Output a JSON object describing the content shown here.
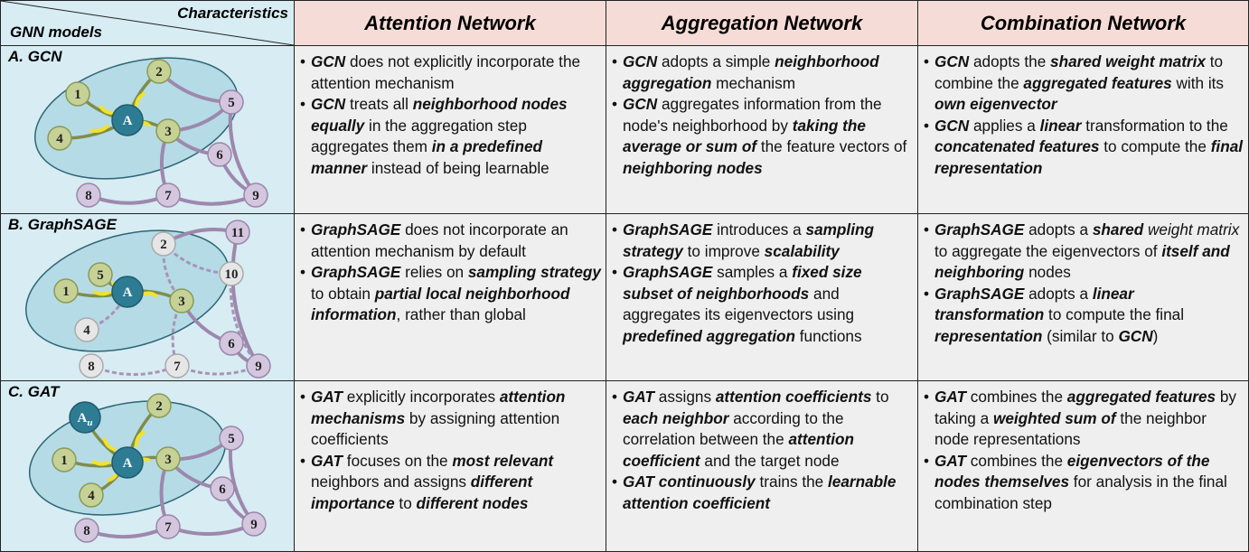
{
  "header": {
    "corner_top": "Characteristics",
    "corner_bottom": "GNN models",
    "columns": [
      "Attention Network",
      "Aggregation Network",
      "Combination Network"
    ]
  },
  "rows": [
    {
      "model": "A. GCN",
      "nodes": [
        {
          "label": "1"
        },
        {
          "label": "2"
        },
        {
          "label": "A"
        },
        {
          "label": "3"
        },
        {
          "label": "4"
        },
        {
          "label": "5"
        },
        {
          "label": "6"
        },
        {
          "label": "7"
        },
        {
          "label": "8"
        },
        {
          "label": "9"
        }
      ],
      "cells": [
        [
          [
            {
              "text": "GCN",
              "style": "bold-italic"
            },
            {
              "text": " does not explicitly incorporate the attention mechanism"
            }
          ],
          [
            {
              "text": "GCN",
              "style": "bold-italic"
            },
            {
              "text": " treats all "
            },
            {
              "text": "neighborhood nodes equally",
              "style": "bold-italic"
            },
            {
              "text": " in the aggregation step aggregates them "
            },
            {
              "text": "in a predefined manner",
              "style": "bold-italic"
            },
            {
              "text": " instead of being learnable"
            }
          ]
        ],
        [
          [
            {
              "text": "GCN",
              "style": "bold-italic"
            },
            {
              "text": " adopts a simple "
            },
            {
              "text": "neighborhood aggregation",
              "style": "bold-italic"
            },
            {
              "text": " mechanism"
            }
          ],
          [
            {
              "text": "GCN",
              "style": "bold-italic"
            },
            {
              "text": " aggregates information from the node's neighborhood by "
            },
            {
              "text": "taking the average or sum of",
              "style": "bold-italic"
            },
            {
              "text": " the feature vectors of "
            },
            {
              "text": "neighboring nodes",
              "style": "bold-italic"
            }
          ]
        ],
        [
          [
            {
              "text": "GCN",
              "style": "bold-italic"
            },
            {
              "text": " adopts the "
            },
            {
              "text": "shared weight matrix",
              "style": "bold-italic"
            },
            {
              "text": " to combine the "
            },
            {
              "text": "aggregated features",
              "style": "bold-italic"
            },
            {
              "text": " with its "
            },
            {
              "text": "own eigenvector",
              "style": "bold-italic"
            }
          ],
          [
            {
              "text": "GCN",
              "style": "bold-italic"
            },
            {
              "text": " applies a "
            },
            {
              "text": "linear",
              "style": "bold-italic"
            },
            {
              "text": " transformation to the "
            },
            {
              "text": "concatenated features",
              "style": "bold-italic"
            },
            {
              "text": " to compute the "
            },
            {
              "text": "final representation",
              "style": "bold-italic"
            }
          ]
        ]
      ]
    },
    {
      "model": "B. GraphSAGE",
      "nodes": [
        {
          "label": "11"
        },
        {
          "label": "2"
        },
        {
          "label": "5"
        },
        {
          "label": "10"
        },
        {
          "label": "1"
        },
        {
          "label": "A"
        },
        {
          "label": "3"
        },
        {
          "label": "4"
        },
        {
          "label": "6"
        },
        {
          "label": "8"
        },
        {
          "label": "7"
        },
        {
          "label": "9"
        }
      ],
      "cells": [
        [
          [
            {
              "text": "GraphSAGE",
              "style": "bold-italic"
            },
            {
              "text": " does not incorporate an attention mechanism by default"
            }
          ],
          [
            {
              "text": "GraphSAGE",
              "style": "bold-italic"
            },
            {
              "text": " relies on "
            },
            {
              "text": "sampling strategy",
              "style": "bold-italic"
            },
            {
              "text": " to obtain "
            },
            {
              "text": "partial local neighborhood information",
              "style": "bold-italic"
            },
            {
              "text": ", rather than global"
            }
          ]
        ],
        [
          [
            {
              "text": "GraphSAGE",
              "style": "bold-italic"
            },
            {
              "text": " introduces a "
            },
            {
              "text": "sampling strategy",
              "style": "bold-italic"
            },
            {
              "text": " to improve "
            },
            {
              "text": "scalability",
              "style": "bold-italic"
            }
          ],
          [
            {
              "text": "GraphSAGE",
              "style": "bold-italic"
            },
            {
              "text": " samples a "
            },
            {
              "text": "fixed size subset of neighborhoods",
              "style": "bold-italic"
            },
            {
              "text": " and aggregates its eigenvectors using "
            },
            {
              "text": "predefined aggregation",
              "style": "bold-italic"
            },
            {
              "text": " functions"
            }
          ]
        ],
        [
          [
            {
              "text": "GraphSAGE",
              "style": "bold-italic"
            },
            {
              "text": " adopts a "
            },
            {
              "text": "shared",
              "style": "bold-italic"
            },
            {
              "text": " weight matrix",
              "style": "italic"
            },
            {
              "text": " to aggregate the eigenvectors of "
            },
            {
              "text": "itself and neighboring",
              "style": "bold-italic"
            },
            {
              "text": " nodes"
            }
          ],
          [
            {
              "text": "GraphSAGE",
              "style": "bold-italic"
            },
            {
              "text": " adopts a "
            },
            {
              "text": "linear transformation",
              "style": "bold-italic"
            },
            {
              "text": " to compute the final "
            },
            {
              "text": "representation",
              "style": "bold-italic"
            },
            {
              "text": " (similar to "
            },
            {
              "text": "GCN",
              "style": "bold-italic"
            },
            {
              "text": ")"
            }
          ]
        ]
      ]
    },
    {
      "model": "C. GAT",
      "nodes": [
        {
          "label": "A",
          "subscript": "u"
        },
        {
          "label": "2"
        },
        {
          "label": "5"
        },
        {
          "label": "1"
        },
        {
          "label": "A"
        },
        {
          "label": "3"
        },
        {
          "label": "4"
        },
        {
          "label": "6"
        },
        {
          "label": "8"
        },
        {
          "label": "7"
        },
        {
          "label": "9"
        }
      ],
      "cells": [
        [
          [
            {
              "text": "GAT",
              "style": "bold-italic"
            },
            {
              "text": " explicitly incorporates "
            },
            {
              "text": "attention mechanisms",
              "style": "bold-italic"
            },
            {
              "text": " by assigning attention coefficients"
            }
          ],
          [
            {
              "text": "GAT",
              "style": "bold-italic"
            },
            {
              "text": " focuses on the "
            },
            {
              "text": "most relevant",
              "style": "bold-italic"
            },
            {
              "text": " neighbors and assigns "
            },
            {
              "text": "different importance",
              "style": "bold-italic"
            },
            {
              "text": " to "
            },
            {
              "text": "different nodes",
              "style": "bold-italic"
            }
          ]
        ],
        [
          [
            {
              "text": "GAT",
              "style": "bold-italic"
            },
            {
              "text": " assigns "
            },
            {
              "text": "attention coefficients",
              "style": "bold-italic"
            },
            {
              "text": " to "
            },
            {
              "text": "each neighbor",
              "style": "bold-italic"
            },
            {
              "text": " according to the correlation between the "
            },
            {
              "text": "attention coefficient",
              "style": "bold-italic"
            },
            {
              "text": " and the target node"
            }
          ],
          [
            {
              "text": "GAT continuously",
              "style": "bold-italic"
            },
            {
              "text": " trains the "
            },
            {
              "text": "learnable attention coefficient",
              "style": "bold-italic"
            }
          ]
        ],
        [
          [
            {
              "text": "GAT",
              "style": "bold-italic"
            },
            {
              "text": " combines the "
            },
            {
              "text": "aggregated features",
              "style": "bold-italic"
            },
            {
              "text": " by taking a "
            },
            {
              "text": "weighted sum of",
              "style": "bold-italic"
            },
            {
              "text": " the neighbor node representations"
            }
          ],
          [
            {
              "text": "GAT",
              "style": "bold-italic"
            },
            {
              "text": " combines the "
            },
            {
              "text": "eigenvectors of the nodes themselves",
              "style": "bold-italic"
            },
            {
              "text": " for analysis in the final combination step"
            }
          ]
        ]
      ]
    }
  ]
}
